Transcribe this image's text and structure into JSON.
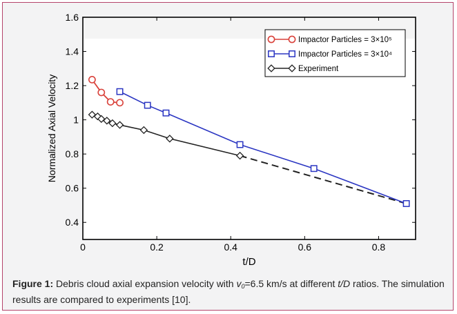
{
  "chart_data": {
    "type": "line",
    "xlabel": "t/D",
    "ylabel": "Normalized Axial Velocity",
    "xlim": [
      0,
      0.9
    ],
    "ylim": [
      0.3,
      1.6
    ],
    "x_ticks": [
      "0",
      "0.2",
      "0.4",
      "0.6",
      "0.8"
    ],
    "y_ticks": [
      "0.4",
      "0.6",
      "0.8",
      "1",
      "1.2",
      "1.4",
      "1.6"
    ],
    "legend_position": "top-right",
    "series": [
      {
        "name": "Impactor Particles = 3×10⁵",
        "color": "#d9413a",
        "marker": "circle",
        "x": [
          0.025,
          0.05,
          0.075,
          0.1
        ],
        "y": [
          1.235,
          1.16,
          1.105,
          1.1
        ]
      },
      {
        "name": "Impactor Particles = 3×10⁴",
        "color": "#2a35c2",
        "marker": "square",
        "x": [
          0.1,
          0.175,
          0.225,
          0.425,
          0.625,
          0.875
        ],
        "y": [
          1.165,
          1.085,
          1.04,
          0.855,
          0.715,
          0.51
        ]
      },
      {
        "name": "Experiment",
        "color": "#222222",
        "marker": "diamond",
        "x": [
          0.025,
          0.04,
          0.05,
          0.065,
          0.08,
          0.1,
          0.165,
          0.235,
          0.425
        ],
        "y": [
          1.03,
          1.02,
          1.005,
          0.995,
          0.98,
          0.97,
          0.94,
          0.89,
          0.79
        ],
        "extrapolated_dashed_to": [
          0.875,
          0.51
        ]
      }
    ]
  },
  "caption": {
    "label": "Figure 1:",
    "text_a": " Debris cloud axial expansion velocity with ",
    "var": "v",
    "var_sub": "0",
    "text_b": "=6.5 km/s at different ",
    "td": "t/D",
    "text_c": " ratios. The simulation results are compared to experiments [10]."
  }
}
